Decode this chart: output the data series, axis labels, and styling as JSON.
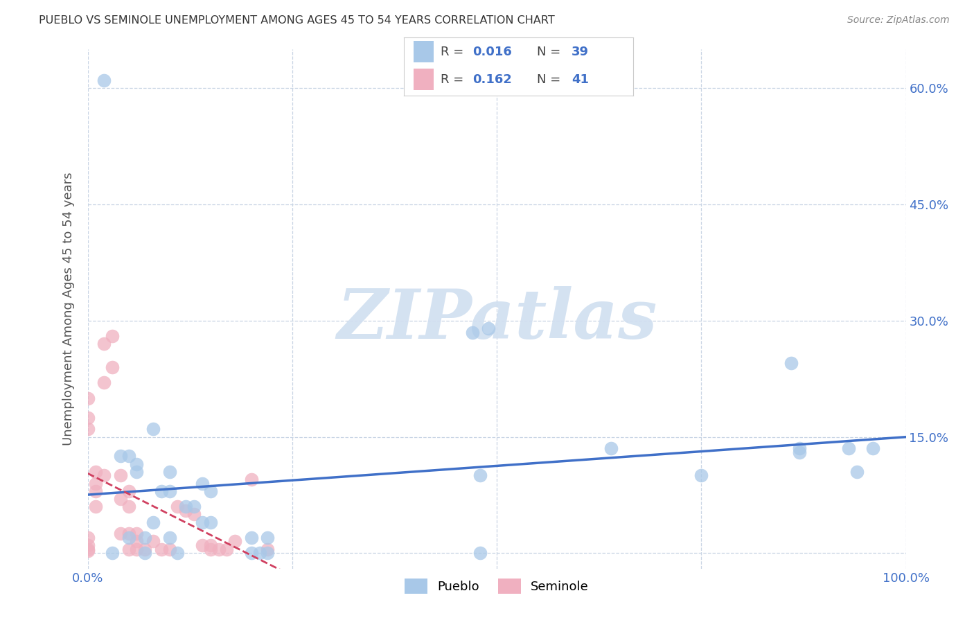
{
  "title": "PUEBLO VS SEMINOLE UNEMPLOYMENT AMONG AGES 45 TO 54 YEARS CORRELATION CHART",
  "source": "Source: ZipAtlas.com",
  "ylabel": "Unemployment Among Ages 45 to 54 years",
  "xlim": [
    0,
    1.0
  ],
  "ylim": [
    -0.02,
    0.65
  ],
  "xticks": [
    0.0,
    0.25,
    0.5,
    0.75,
    1.0
  ],
  "xticklabels": [
    "0.0%",
    "",
    "",
    "",
    "100.0%"
  ],
  "yticks": [
    0.0,
    0.15,
    0.3,
    0.45,
    0.6
  ],
  "yticklabels_right": [
    "",
    "15.0%",
    "30.0%",
    "45.0%",
    "60.0%"
  ],
  "pueblo_color": "#a8c8e8",
  "pueblo_edge_color": "#a8c8e8",
  "seminole_color": "#f0b0c0",
  "seminole_edge_color": "#f0b0c0",
  "pueblo_line_color": "#4070c8",
  "seminole_line_color": "#d04060",
  "pueblo_R": 0.016,
  "pueblo_N": 39,
  "seminole_R": 0.162,
  "seminole_N": 41,
  "watermark_text": "ZIPatlas",
  "watermark_color": "#d0dff0",
  "background_color": "#ffffff",
  "grid_color": "#c8d4e4",
  "legend_text_color": "#4070c8",
  "legend_label_color": "#555555",
  "title_color": "#333333",
  "source_color": "#888888",
  "tick_color": "#4070c8",
  "ylabel_color": "#555555",
  "pueblo_x": [
    0.02,
    0.03,
    0.04,
    0.05,
    0.05,
    0.06,
    0.06,
    0.07,
    0.07,
    0.08,
    0.08,
    0.09,
    0.1,
    0.1,
    0.1,
    0.11,
    0.12,
    0.13,
    0.14,
    0.14,
    0.15,
    0.15,
    0.2,
    0.2,
    0.21,
    0.22,
    0.22,
    0.47,
    0.48,
    0.48,
    0.49,
    0.64,
    0.75,
    0.86,
    0.87,
    0.87,
    0.93,
    0.94,
    0.96
  ],
  "pueblo_y": [
    0.61,
    0.0,
    0.125,
    0.125,
    0.02,
    0.115,
    0.105,
    0.0,
    0.02,
    0.04,
    0.16,
    0.08,
    0.08,
    0.105,
    0.02,
    0.0,
    0.06,
    0.06,
    0.04,
    0.09,
    0.08,
    0.04,
    0.0,
    0.02,
    0.0,
    0.0,
    0.02,
    0.285,
    0.1,
    0.0,
    0.29,
    0.135,
    0.1,
    0.245,
    0.135,
    0.13,
    0.135,
    0.105,
    0.135
  ],
  "seminole_x": [
    0.0,
    0.0,
    0.0,
    0.0,
    0.0,
    0.0,
    0.0,
    0.01,
    0.01,
    0.01,
    0.01,
    0.02,
    0.02,
    0.02,
    0.03,
    0.03,
    0.04,
    0.04,
    0.04,
    0.05,
    0.05,
    0.05,
    0.05,
    0.06,
    0.06,
    0.06,
    0.07,
    0.08,
    0.09,
    0.1,
    0.11,
    0.12,
    0.13,
    0.14,
    0.15,
    0.15,
    0.16,
    0.17,
    0.18,
    0.2,
    0.22
  ],
  "seminole_y": [
    0.2,
    0.175,
    0.16,
    0.02,
    0.01,
    0.005,
    0.003,
    0.105,
    0.09,
    0.08,
    0.06,
    0.27,
    0.22,
    0.1,
    0.28,
    0.24,
    0.1,
    0.07,
    0.025,
    0.08,
    0.06,
    0.025,
    0.005,
    0.025,
    0.015,
    0.005,
    0.005,
    0.015,
    0.005,
    0.005,
    0.06,
    0.055,
    0.05,
    0.01,
    0.005,
    0.01,
    0.005,
    0.005,
    0.015,
    0.095,
    0.005
  ]
}
